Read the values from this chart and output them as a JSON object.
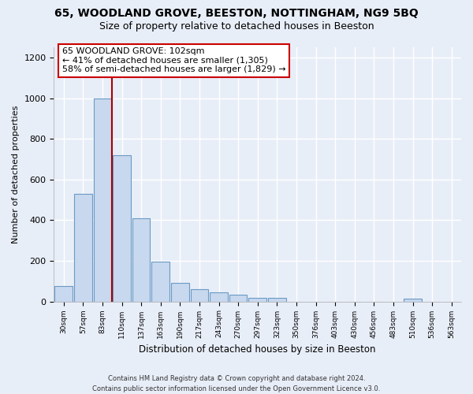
{
  "title": "65, WOODLAND GROVE, BEESTON, NOTTINGHAM, NG9 5BQ",
  "subtitle": "Size of property relative to detached houses in Beeston",
  "xlabel": "Distribution of detached houses by size in Beeston",
  "ylabel": "Number of detached properties",
  "bar_labels": [
    "30sqm",
    "57sqm",
    "83sqm",
    "110sqm",
    "137sqm",
    "163sqm",
    "190sqm",
    "217sqm",
    "243sqm",
    "270sqm",
    "297sqm",
    "323sqm",
    "350sqm",
    "376sqm",
    "403sqm",
    "430sqm",
    "456sqm",
    "483sqm",
    "510sqm",
    "536sqm",
    "563sqm"
  ],
  "bar_values": [
    75,
    530,
    1000,
    720,
    410,
    195,
    90,
    60,
    45,
    35,
    18,
    18,
    0,
    0,
    0,
    0,
    0,
    0,
    12,
    0,
    0
  ],
  "bar_color": "#c8d8ee",
  "bar_edge_color": "#6a9ac4",
  "vline_color": "#aa0000",
  "annotation_line1": "65 WOODLAND GROVE: 102sqm",
  "annotation_line2": "← 41% of detached houses are smaller (1,305)",
  "annotation_line3": "58% of semi-detached houses are larger (1,829) →",
  "annotation_box_color": "white",
  "annotation_box_edge": "#cc0000",
  "ylim": [
    0,
    1250
  ],
  "yticks": [
    0,
    200,
    400,
    600,
    800,
    1000,
    1200
  ],
  "footer_line1": "Contains HM Land Registry data © Crown copyright and database right 2024.",
  "footer_line2": "Contains public sector information licensed under the Open Government Licence v3.0.",
  "bg_color": "#e8eef8",
  "grid_color": "white"
}
